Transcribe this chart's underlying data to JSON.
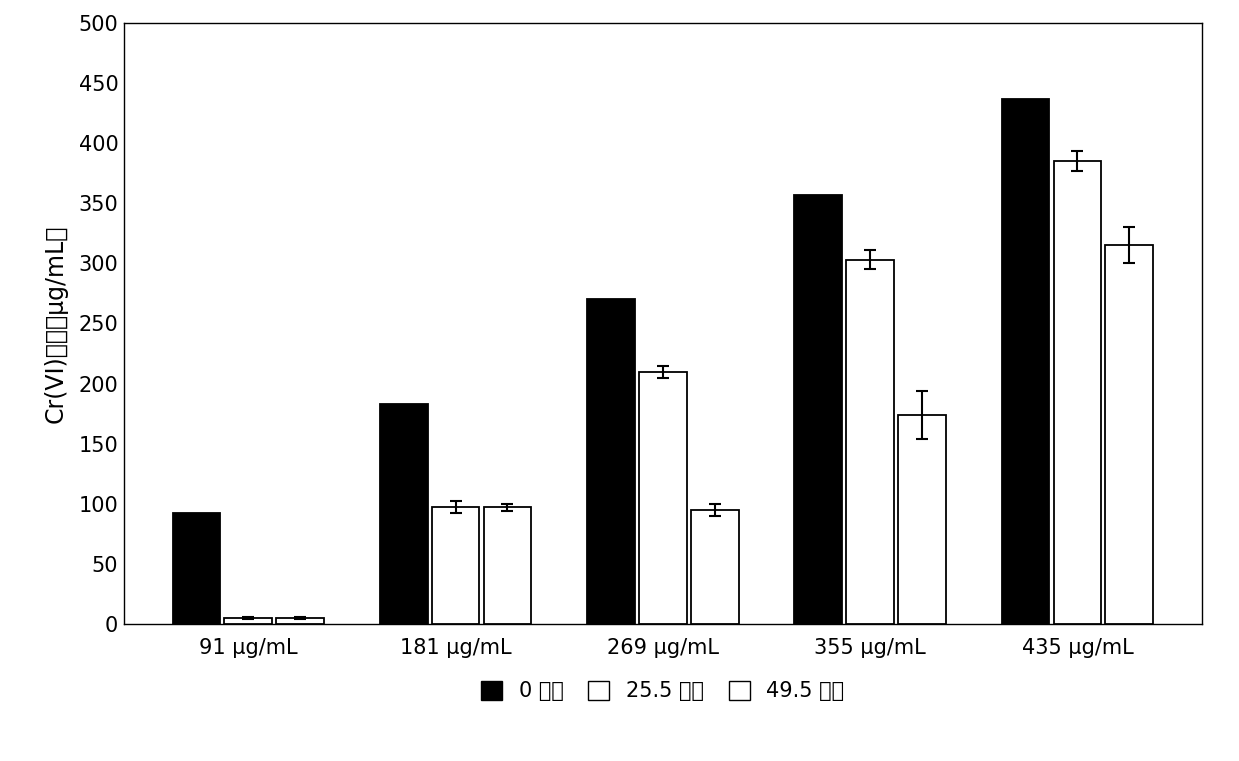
{
  "categories": [
    "91 µg/mL",
    "181 µg/mL",
    "269 µg/mL",
    "355 µg/mL",
    "435 µg/mL"
  ],
  "series": [
    {
      "label": "0 小时",
      "values": [
        92,
        183,
        270,
        357,
        437
      ],
      "errors": [
        0,
        0,
        0,
        0,
        0
      ],
      "color": "black",
      "edgecolor": "black"
    },
    {
      "label": "25.5 小时",
      "values": [
        5,
        97,
        210,
        303,
        385
      ],
      "errors": [
        1,
        5,
        5,
        8,
        8
      ],
      "color": "white",
      "edgecolor": "black"
    },
    {
      "label": "49.5 小时",
      "values": [
        5,
        97,
        95,
        174,
        315
      ],
      "errors": [
        1,
        3,
        5,
        20,
        15
      ],
      "color": "white",
      "edgecolor": "black"
    }
  ],
  "ylabel": "Cr(VI)含量（µg/mL）",
  "ylim": [
    0,
    500
  ],
  "yticks": [
    0,
    50,
    100,
    150,
    200,
    250,
    300,
    350,
    400,
    450,
    500
  ],
  "bar_width": 0.25,
  "background_color": "#ffffff",
  "figsize": [
    12.39,
    7.61
  ],
  "dpi": 100
}
